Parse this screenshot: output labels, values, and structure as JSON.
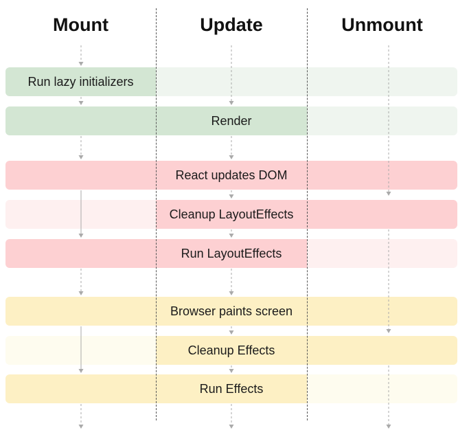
{
  "columns": [
    {
      "id": "mount",
      "title": "Mount"
    },
    {
      "id": "update",
      "title": "Update"
    },
    {
      "id": "unmount",
      "title": "Unmount"
    }
  ],
  "phases": [
    {
      "id": "lazy",
      "label": "Run lazy initializers",
      "color": "green",
      "active": [
        true,
        false,
        false
      ],
      "label_col": "mount"
    },
    {
      "id": "render",
      "label": "Render",
      "color": "green",
      "active": [
        true,
        true,
        false
      ],
      "label_col": "mount-update"
    },
    {
      "id": "dom",
      "label": "React updates DOM",
      "color": "red",
      "active": [
        true,
        true,
        true
      ],
      "label_col": "update"
    },
    {
      "id": "cleanup-layout",
      "label": "Cleanup LayoutEffects",
      "color": "red",
      "active": [
        false,
        true,
        true
      ],
      "label_col": "update"
    },
    {
      "id": "run-layout",
      "label": "Run LayoutEffects",
      "color": "red",
      "active": [
        true,
        true,
        false
      ],
      "label_col": "update"
    },
    {
      "id": "paint",
      "label": "Browser paints screen",
      "color": "yellow",
      "active": [
        true,
        true,
        true
      ],
      "label_col": "update"
    },
    {
      "id": "cleanup-effects",
      "label": "Cleanup Effects",
      "color": "yellow",
      "active": [
        false,
        true,
        true
      ],
      "label_col": "update"
    },
    {
      "id": "run-effects",
      "label": "Run Effects",
      "color": "yellow",
      "active": [
        true,
        true,
        false
      ],
      "label_col": "update"
    }
  ],
  "colors": {
    "green": {
      "active": "#d3e6d3",
      "inactive": "#eff5ef"
    },
    "red": {
      "active": "#fdd0d2",
      "inactive": "#fef0f0"
    },
    "yellow": {
      "active": "#fdf0c4",
      "inactive": "#fefcef"
    },
    "arrow": "#aaaaaa",
    "divider": "#555555"
  }
}
